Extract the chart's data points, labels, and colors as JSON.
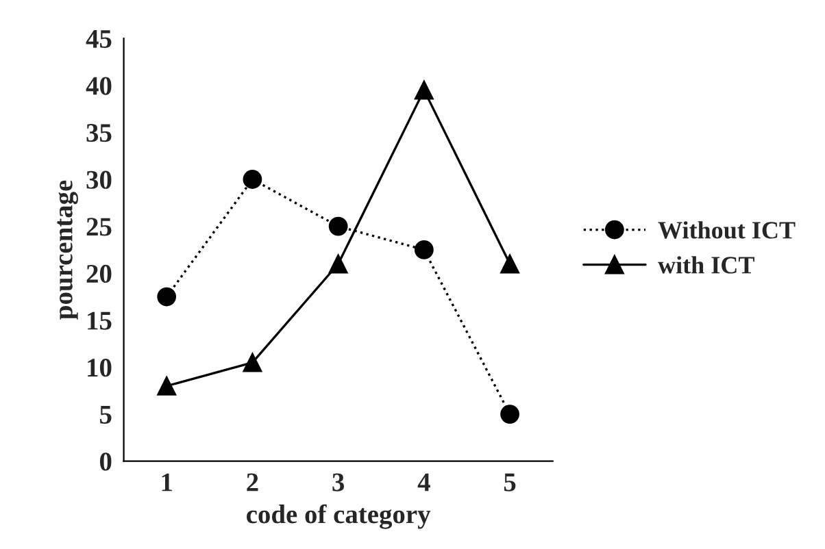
{
  "chart_data": {
    "type": "line",
    "xlabel": "code of category",
    "ylabel": "pourcentage",
    "categories": [
      "1",
      "2",
      "3",
      "4",
      "5"
    ],
    "series": [
      {
        "name": "Without ICT",
        "color": "#000000",
        "marker": "circle",
        "line_style": "dotted",
        "values": [
          17.5,
          30,
          25,
          22.5,
          5
        ]
      },
      {
        "name": "with ICT",
        "color": "#000000",
        "marker": "triangle",
        "line_style": "solid",
        "values": [
          8,
          10.5,
          21,
          39.5,
          21
        ]
      }
    ],
    "ylim": [
      0,
      45
    ],
    "yticks": [
      0,
      5,
      10,
      15,
      20,
      25,
      30,
      35,
      40,
      45
    ],
    "grid": false,
    "legend": "right"
  }
}
